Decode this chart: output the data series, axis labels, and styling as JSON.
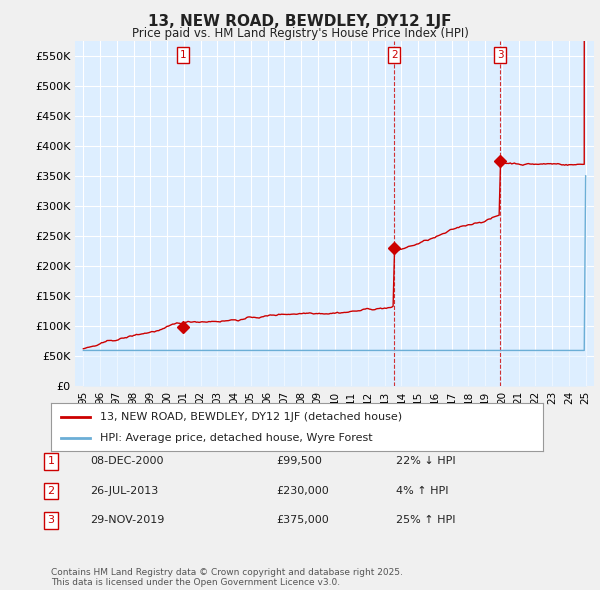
{
  "title": "13, NEW ROAD, BEWDLEY, DY12 1JF",
  "subtitle": "Price paid vs. HM Land Registry's House Price Index (HPI)",
  "ylim": [
    0,
    575000
  ],
  "yticks": [
    0,
    50000,
    100000,
    150000,
    200000,
    250000,
    300000,
    350000,
    400000,
    450000,
    500000,
    550000
  ],
  "ytick_labels": [
    "£0",
    "£50K",
    "£100K",
    "£150K",
    "£200K",
    "£250K",
    "£300K",
    "£350K",
    "£400K",
    "£450K",
    "£500K",
    "£550K"
  ],
  "xlim_start": 1994.5,
  "xlim_end": 2025.5,
  "sale_color": "#cc0000",
  "hpi_color": "#6baed6",
  "hpi_fill_color": "#ddeeff",
  "sale_dates_num": [
    2000.94,
    2013.57,
    2019.91
  ],
  "sale_prices": [
    99500,
    230000,
    375000
  ],
  "sale_labels": [
    "1",
    "2",
    "3"
  ],
  "dashed_lines_for": [
    1,
    2
  ],
  "legend_sale_label": "13, NEW ROAD, BEWDLEY, DY12 1JF (detached house)",
  "legend_hpi_label": "HPI: Average price, detached house, Wyre Forest",
  "table_rows": [
    [
      "1",
      "08-DEC-2000",
      "£99,500",
      "22% ↓ HPI"
    ],
    [
      "2",
      "26-JUL-2013",
      "£230,000",
      "4% ↑ HPI"
    ],
    [
      "3",
      "29-NOV-2019",
      "£375,000",
      "25% ↑ HPI"
    ]
  ],
  "footnote": "Contains HM Land Registry data © Crown copyright and database right 2025.\nThis data is licensed under the Open Government Licence v3.0.",
  "background_color": "#f0f0f0",
  "plot_bg_color": "#ddeeff",
  "grid_color": "#ffffff"
}
